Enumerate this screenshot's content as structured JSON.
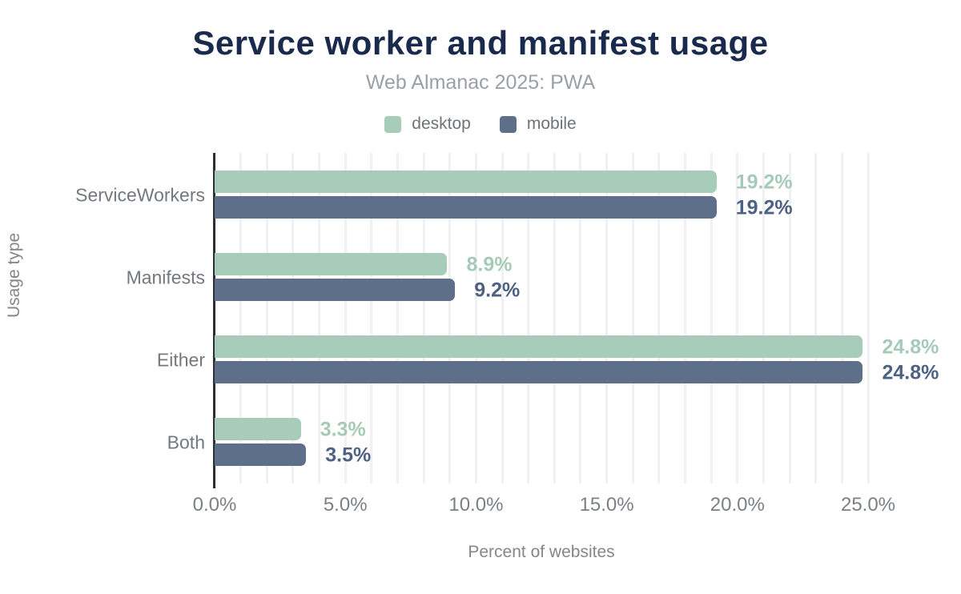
{
  "chart": {
    "title": "Service worker and manifest usage",
    "subtitle": "Web Almanac 2025: PWA",
    "xlabel": "Percent of websites",
    "ylabel": "Usage type"
  },
  "legend": {
    "items": [
      {
        "label": "desktop",
        "color": "#a8ccba"
      },
      {
        "label": "mobile",
        "color": "#5e7089"
      }
    ]
  },
  "colors": {
    "title": "#1a2a4c",
    "subtitle": "#9aa0a6",
    "axis_line": "#2c3035",
    "gridline": "#f1f1f3",
    "tick_text": "#7b8084",
    "category_text": "#73787d",
    "desktop_bar": "#a8ccba",
    "mobile_bar": "#5e7089",
    "desktop_value_label": "#a5cbb8",
    "mobile_value_label": "#4d6183"
  },
  "chart_data": {
    "type": "bar",
    "orientation": "horizontal",
    "title": "Service worker and manifest usage",
    "subtitle": "Web Almanac 2025: PWA",
    "xlabel": "Percent of websites",
    "ylabel": "Usage type",
    "categories": [
      "ServiceWorkers",
      "Manifests",
      "Either",
      "Both"
    ],
    "series": [
      {
        "name": "desktop",
        "color": "#a8ccba",
        "label_color": "#a5cbb8",
        "values": [
          19.2,
          8.9,
          24.8,
          3.3
        ]
      },
      {
        "name": "mobile",
        "color": "#5e7089",
        "label_color": "#4d6183",
        "values": [
          19.2,
          9.2,
          24.8,
          3.5
        ]
      }
    ],
    "value_label_format": "percent_one_decimal",
    "x_ticks": [
      "0.0%",
      "5.0%",
      "10.0%",
      "15.0%",
      "20.0%",
      "25.0%"
    ],
    "x_tick_values": [
      0,
      5,
      10,
      15,
      20,
      25
    ],
    "xlim": [
      0,
      25
    ],
    "grid_step": 1,
    "grid": true,
    "legend_position": "top"
  }
}
